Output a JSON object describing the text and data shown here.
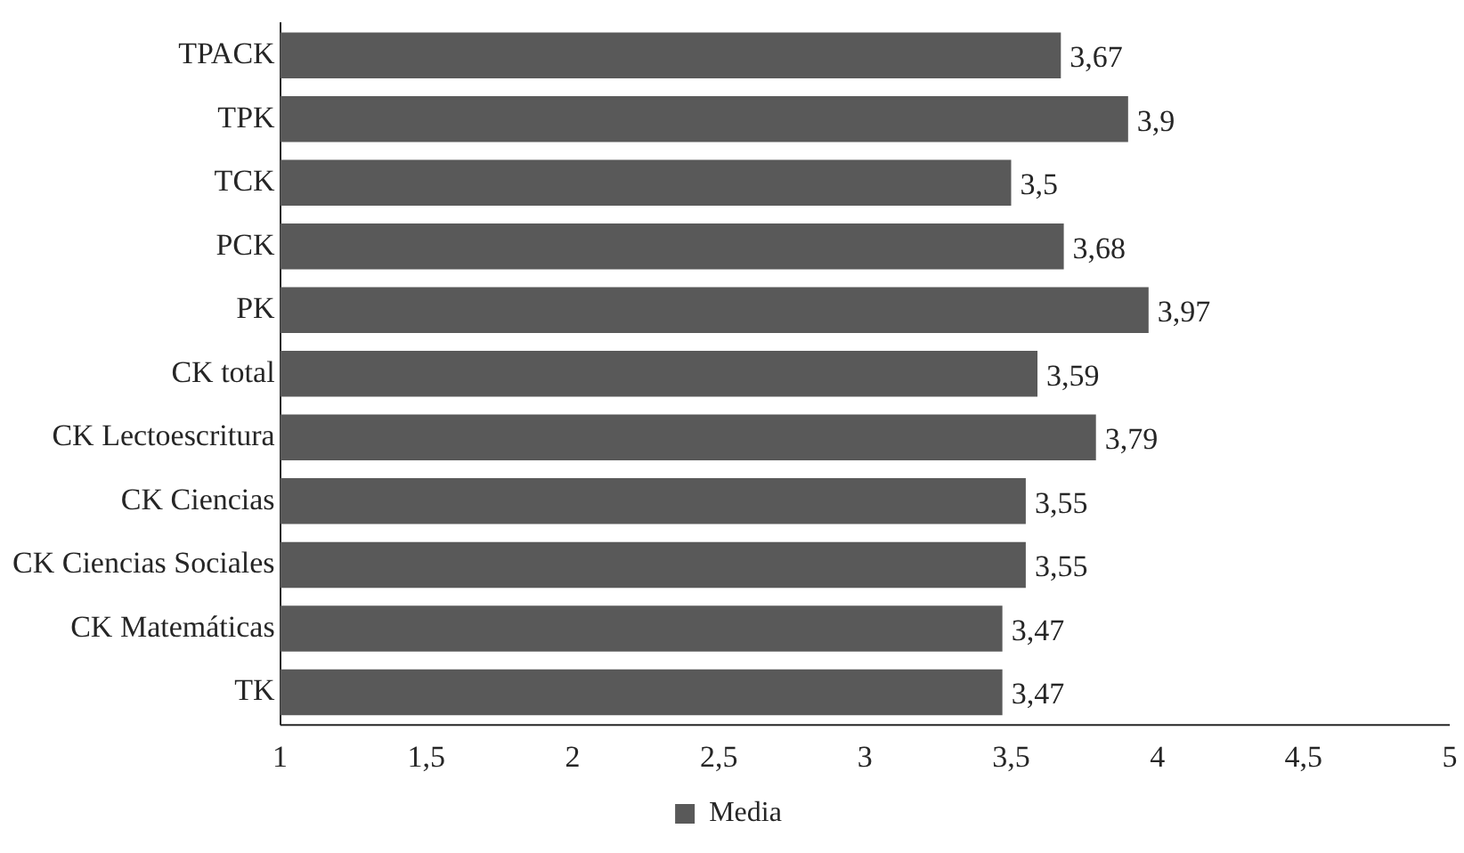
{
  "chart_data": {
    "type": "bar",
    "orientation": "horizontal",
    "categories": [
      "TPACK",
      "TPK",
      "TCK",
      "PCK",
      "PK",
      "CK total",
      "CK Lectoescritura",
      "CK Ciencias",
      "CK Ciencias Sociales",
      "CK Matemáticas",
      "TK"
    ],
    "series": [
      {
        "name": "Media",
        "color": "#595959",
        "values": [
          3.67,
          3.9,
          3.5,
          3.68,
          3.97,
          3.59,
          3.79,
          3.55,
          3.55,
          3.47,
          3.47
        ],
        "value_labels": [
          "3,67",
          "3,9",
          "3,5",
          "3,68",
          "3,97",
          "3,59",
          "3,79",
          "3,55",
          "3,55",
          "3,47",
          "3,47"
        ]
      }
    ],
    "xlim": [
      1,
      5
    ],
    "xticks": [
      1,
      {
        "value": 1.5,
        "label": "1,5"
      },
      2,
      {
        "value": 2.5,
        "label": "2,5"
      },
      3,
      {
        "value": 3.5,
        "label": "3,5"
      },
      4,
      {
        "value": 4.5,
        "label": "4,5"
      },
      5
    ],
    "grid": false,
    "legend": "bottom"
  }
}
